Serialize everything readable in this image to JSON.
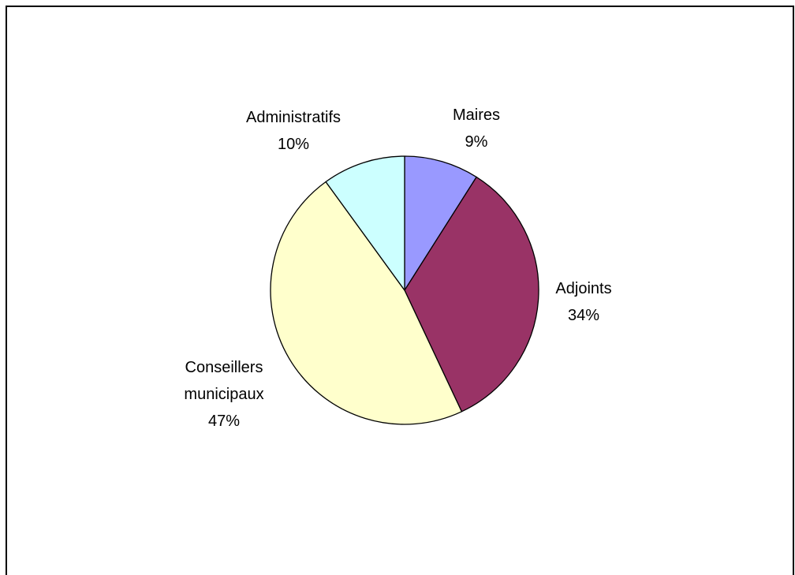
{
  "chart_data": {
    "type": "pie",
    "start_angle_deg": 0,
    "direction": "clockwise",
    "slices": [
      {
        "label": "Maires",
        "lines": [
          "Maires",
          "9%"
        ],
        "value": 9,
        "color": "#9999ff"
      },
      {
        "label": "Adjoints",
        "lines": [
          "Adjoints",
          "34%"
        ],
        "value": 34,
        "color": "#993366"
      },
      {
        "label": "Conseillers municipaux",
        "lines": [
          "Conseillers",
          "municipaux",
          "47%"
        ],
        "value": 47,
        "color": "#ffffcc"
      },
      {
        "label": "Administratifs",
        "lines": [
          "Administratifs",
          "10%"
        ],
        "value": 10,
        "color": "#ccffff"
      }
    ],
    "legend": "none",
    "grid": false
  }
}
